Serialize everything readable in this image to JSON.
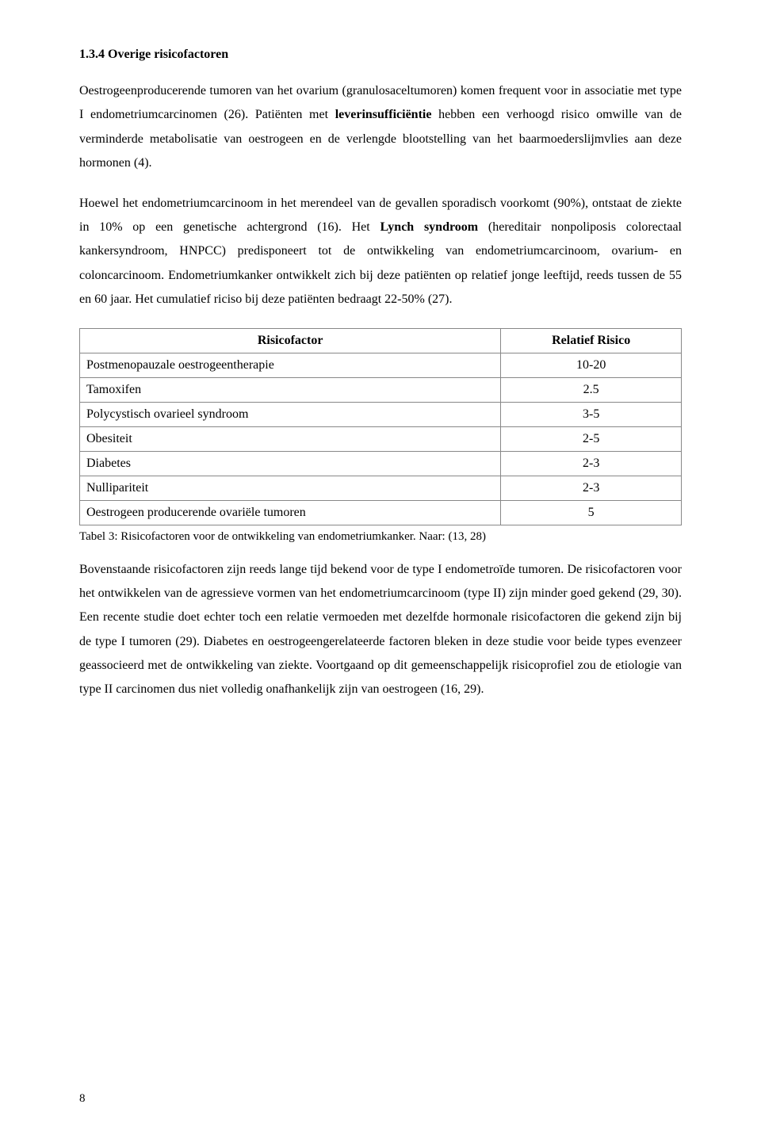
{
  "heading": "1.3.4   Overige risicofactoren",
  "paragraph1": {
    "t1": "Oestrogeenproducerende tumoren",
    "t2": " van het ovarium (granulosaceltumoren) komen frequent voor in associatie met type I endometriumcarcinomen (26). Patiënten met ",
    "t3": "leverinsufficiëntie",
    "t4": " hebben een verhoogd risico omwille van de verminderde metabolisatie van oestrogeen en de verlengde blootstelling van het baarmoederslijmvlies aan deze hormonen (4)."
  },
  "paragraph2": {
    "t1": "Hoewel het endometriumcarcinoom in het merendeel van de gevallen sporadisch voorkomt (90%), ontstaat de ziekte in 10% op een genetische achtergrond (16). Het ",
    "t2": "Lynch syndroom",
    "t3": " (hereditair nonpoliposis colorectaal kankersyndroom, HNPCC) predisponeert tot de ontwikkeling van endometriumcarcinoom, ovarium- en coloncarcinoom. Endometriumkanker ontwikkelt zich bij deze patiënten op relatief jonge leeftijd, reeds tussen de 55 en 60 jaar. Het cumulatief riciso bij deze patiënten bedraagt 22-50% (27)."
  },
  "table": {
    "header_factor": "Risicofactor",
    "header_risk": "Relatief Risico",
    "rows": [
      {
        "factor": "Postmenopauzale oestrogeentherapie",
        "risk": "10-20"
      },
      {
        "factor": "Tamoxifen",
        "risk": "2.5"
      },
      {
        "factor": "Polycystisch ovarieel syndroom",
        "risk": "3-5"
      },
      {
        "factor": "Obesiteit",
        "risk": "2-5"
      },
      {
        "factor": "Diabetes",
        "risk": "2-3"
      },
      {
        "factor": "Nullipariteit",
        "risk": "2-3"
      },
      {
        "factor": "Oestrogeen producerende  ovariële tumoren",
        "risk": "5"
      }
    ],
    "caption": "Tabel 3: Risicofactoren voor de ontwikkeling van endometriumkanker. Naar: (13, 28)"
  },
  "paragraph3": "Bovenstaande risicofactoren zijn reeds lange tijd bekend voor de type I endometroïde tumoren. De risicofactoren voor het ontwikkelen van de agressieve vormen van het  endometriumcarcinoom (type II) zijn minder goed gekend (29, 30).  Een recente studie doet echter toch een relatie vermoeden met dezelfde hormonale risicofactoren die gekend zijn bij de type I tumoren (29). Diabetes en oestrogeengerelateerde factoren bleken in deze studie voor beide types evenzeer geassocieerd met de ontwikkeling van ziekte. Voortgaand op dit gemeenschappelijk risicoprofiel zou de etiologie van type II carcinomen dus niet volledig onafhankelijk zijn van oestrogeen (16, 29).",
  "page_number": "8"
}
